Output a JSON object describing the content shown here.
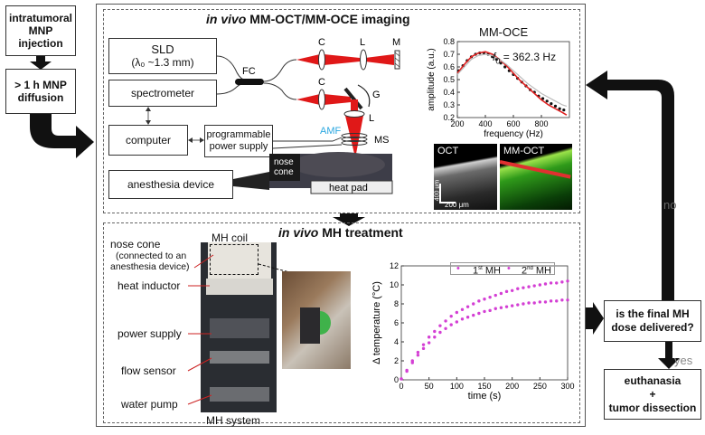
{
  "left_flow": {
    "step1": "intratumoral MNP injection",
    "step2": "> 1 h MNP diffusion"
  },
  "imaging": {
    "title_italic": "in vivo",
    "title_rest": " MM-OCT/MM-OCE imaging",
    "sld": "SLD",
    "sld_wavelength": "(λ₀ ~1.3 mm)",
    "spectrometer": "spectrometer",
    "computer": "computer",
    "power_supply": "programmable power supply",
    "anesthesia": "anesthesia device",
    "fc": "FC",
    "c1": "C",
    "l1": "L",
    "m": "M",
    "c2": "C",
    "g": "G",
    "l2": "L",
    "amf": "AMF",
    "ms": "MS",
    "nose_cone": "nose cone",
    "heat_pad": "heat pad",
    "amf_color": "#2aa7e0"
  },
  "mmoce": {
    "title": "MM-OCE",
    "f0_label": "f",
    "f0_sub": "0",
    "f0_value": " = 362.3 Hz",
    "oct": "OCT",
    "mmoct": "MM-OCT",
    "scale_v": "400 μm",
    "scale_h": "200 μm"
  },
  "chart_data": [
    {
      "type": "scatter",
      "xlabel": "frequency (Hz)",
      "ylabel": "amplitude (a.u.)",
      "xlim": [
        200,
        1000
      ],
      "ylim": [
        0.2,
        0.8
      ],
      "xticks": [
        200,
        400,
        600,
        800
      ],
      "yticks": [
        0.2,
        0.3,
        0.4,
        0.5,
        0.6,
        0.7,
        0.8
      ],
      "grid": false,
      "series": [
        {
          "kind": "points",
          "color": "#111111",
          "x": [
            210,
            240,
            270,
            300,
            330,
            360,
            390,
            420,
            450,
            480,
            510,
            540,
            570,
            600,
            630,
            660,
            690,
            720,
            750,
            780,
            810,
            840,
            870,
            900,
            930,
            960
          ],
          "y": [
            0.57,
            0.61,
            0.65,
            0.68,
            0.7,
            0.71,
            0.71,
            0.7,
            0.68,
            0.66,
            0.63,
            0.6,
            0.57,
            0.54,
            0.51,
            0.48,
            0.45,
            0.42,
            0.4,
            0.37,
            0.35,
            0.33,
            0.31,
            0.29,
            0.27,
            0.26
          ]
        },
        {
          "kind": "fit",
          "color": "#e02020",
          "x": [
            200,
            250,
            300,
            350,
            400,
            450,
            500,
            550,
            600,
            650,
            700,
            750,
            800,
            850,
            900,
            950,
            980
          ],
          "y": [
            0.55,
            0.62,
            0.68,
            0.71,
            0.72,
            0.7,
            0.66,
            0.61,
            0.55,
            0.49,
            0.44,
            0.39,
            0.34,
            0.3,
            0.27,
            0.24,
            0.22
          ]
        },
        {
          "kind": "line",
          "color": "#bbbbbb",
          "x": [
            200,
            250,
            300,
            350,
            400,
            450,
            500,
            550,
            600,
            650,
            700,
            750,
            800,
            850,
            900,
            950,
            980
          ],
          "y": [
            0.54,
            0.6,
            0.66,
            0.69,
            0.7,
            0.69,
            0.66,
            0.62,
            0.57,
            0.52,
            0.47,
            0.43,
            0.39,
            0.36,
            0.33,
            0.3,
            0.29
          ]
        }
      ]
    },
    {
      "type": "scatter",
      "xlabel": "time (s)",
      "ylabel": "Δ temperature (°C)",
      "xlim": [
        0,
        300
      ],
      "ylim": [
        0,
        12
      ],
      "xticks": [
        0,
        50,
        100,
        150,
        200,
        250,
        300
      ],
      "yticks": [
        0,
        2,
        4,
        6,
        8,
        10,
        12
      ],
      "legend_position": "top",
      "series": [
        {
          "name": "1st MH",
          "color": "#d43fd4",
          "x": [
            0,
            10,
            20,
            30,
            40,
            50,
            60,
            70,
            80,
            90,
            100,
            110,
            120,
            130,
            140,
            150,
            160,
            170,
            180,
            190,
            200,
            210,
            220,
            230,
            240,
            250,
            260,
            270,
            280,
            290,
            300
          ],
          "y": [
            0.1,
            1.0,
            2.0,
            2.9,
            3.7,
            4.5,
            5.1,
            5.7,
            6.2,
            6.7,
            7.1,
            7.4,
            7.7,
            8.0,
            8.3,
            8.5,
            8.7,
            8.9,
            9.1,
            9.3,
            9.4,
            9.6,
            9.7,
            9.8,
            9.9,
            10.0,
            10.1,
            10.2,
            10.2,
            10.3,
            10.4
          ]
        },
        {
          "name": "2nd MH",
          "color": "#d43fd4",
          "x": [
            0,
            10,
            20,
            30,
            40,
            50,
            60,
            70,
            80,
            90,
            100,
            110,
            120,
            130,
            140,
            150,
            160,
            170,
            180,
            190,
            200,
            210,
            220,
            230,
            240,
            250,
            260,
            270,
            280,
            290,
            300
          ],
          "y": [
            0.1,
            0.9,
            1.8,
            2.6,
            3.3,
            3.9,
            4.5,
            5.0,
            5.4,
            5.8,
            6.1,
            6.4,
            6.6,
            6.8,
            7.0,
            7.2,
            7.3,
            7.5,
            7.6,
            7.7,
            7.8,
            7.9,
            8.0,
            8.1,
            8.1,
            8.2,
            8.2,
            8.3,
            8.3,
            8.4,
            8.4
          ]
        }
      ],
      "legend_sup1": "st",
      "legend_sup2": "nd",
      "legend_base1": "1",
      "legend_base2": "2",
      "legend_tail": " MH"
    }
  ],
  "mh": {
    "title_italic": "in vivo",
    "title_rest": " MH treatment",
    "nose_cone": "nose cone",
    "nose_cone_note1": "(connected to an",
    "nose_cone_note2": "anesthesia device)",
    "mh_coil": "MH coil",
    "heat_inductor": "heat inductor",
    "power_supply": "power supply",
    "flow_sensor": "flow sensor",
    "water_pump": "water pump",
    "system": "MH system",
    "accent_color": "#cc2222"
  },
  "right_flow": {
    "question": "is the final MH dose delivered?",
    "no": "no",
    "yes": "yes",
    "end1": "euthanasia",
    "end_plus": "+",
    "end2": "tumor dissection"
  }
}
